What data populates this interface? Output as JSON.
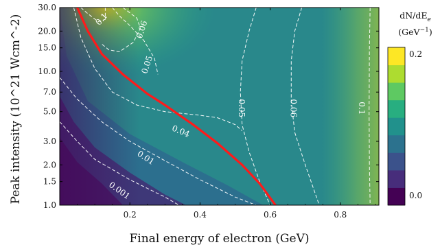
{
  "chart_data": {
    "type": "heatmap",
    "title": "",
    "xlabel": "Final energy of electron (GeV)",
    "ylabel": "Peak intensity (10^21 Wcm^-2)",
    "xlim": [
      0.0,
      0.91
    ],
    "ylim": [
      1.0,
      30.0
    ],
    "yscale": "log",
    "x_ticks": [
      0.2,
      0.4,
      0.6,
      0.8
    ],
    "x_tick_labels": [
      "0.2",
      "0.4",
      "0.6",
      "0.8"
    ],
    "y_ticks": [
      1.0,
      1.5,
      2.0,
      3.0,
      5.0,
      7.0,
      10.0,
      15.0,
      20.0,
      30.0
    ],
    "y_tick_labels": [
      "1.0",
      "1.5",
      "2.0",
      "3.0",
      "5.0",
      "7.0",
      "10.0",
      "15.0",
      "20.0",
      "30.0"
    ],
    "colorbar": {
      "title_line1": "dN/dE_e",
      "title_line2": "(GeV^-1)",
      "range": [
        0.0,
        0.2
      ],
      "tick_labels": [
        "0.2",
        "0.0"
      ],
      "levels": 10,
      "colors": [
        "#440154",
        "#472d7b",
        "#3b528b",
        "#2c728e",
        "#21918c",
        "#28ae80",
        "#5ec962",
        "#addc30",
        "#fde725"
      ]
    },
    "contours": [
      {
        "level": "0.001",
        "points": [
          [
            0.0,
            4.2
          ],
          [
            0.05,
            3.0
          ],
          [
            0.1,
            2.2
          ],
          [
            0.2,
            1.55
          ],
          [
            0.3,
            1.15
          ],
          [
            0.34,
            1.0
          ]
        ],
        "label_at": [
          0.17,
          1.28
        ],
        "label_angle": 35
      },
      {
        "level": "0.01",
        "points": [
          [
            0.0,
            9.0
          ],
          [
            0.05,
            6.2
          ],
          [
            0.12,
            4.2
          ],
          [
            0.2,
            3.0
          ],
          [
            0.3,
            2.15
          ],
          [
            0.4,
            1.55
          ],
          [
            0.5,
            1.15
          ],
          [
            0.56,
            1.0
          ]
        ],
        "label_at": [
          0.245,
          2.25
        ],
        "label_angle": 33
      },
      {
        "level": "0.04",
        "points": [
          [
            0.04,
            30.0
          ],
          [
            0.06,
            18.0
          ],
          [
            0.1,
            10.5
          ],
          [
            0.15,
            7.0
          ],
          [
            0.22,
            5.6
          ],
          [
            0.3,
            5.0
          ],
          [
            0.4,
            4.7
          ],
          [
            0.45,
            4.5
          ],
          [
            0.5,
            4.0
          ],
          [
            0.52,
            3.6
          ]
        ],
        "label_at": [
          0.345,
          3.55
        ],
        "label_angle": 23
      },
      {
        "level": "0.05",
        "points": [
          [
            0.15,
            30.0
          ],
          [
            0.17,
            26.0
          ],
          [
            0.2,
            22.0
          ],
          [
            0.24,
            17.0
          ],
          [
            0.27,
            12.5
          ],
          [
            0.28,
            9.5
          ]
        ],
        "label_at": [
          0.25,
          11.2
        ],
        "label_angle": -72
      },
      {
        "level": "0.05",
        "points": [
          [
            0.56,
            30.0
          ],
          [
            0.54,
            20.0
          ],
          [
            0.52,
            12.0
          ],
          [
            0.515,
            7.0
          ],
          [
            0.52,
            4.0
          ],
          [
            0.54,
            2.5
          ],
          [
            0.57,
            1.5
          ],
          [
            0.6,
            1.0
          ]
        ],
        "label_at": [
          0.518,
          5.3
        ],
        "label_angle": 90
      },
      {
        "level": "0.06",
        "points": [
          [
            0.18,
            30.0
          ],
          [
            0.22,
            25.0
          ],
          [
            0.23,
            21.0
          ],
          [
            0.21,
            16.5
          ],
          [
            0.17,
            14.0
          ],
          [
            0.14,
            14.5
          ],
          [
            0.12,
            16.0
          ]
        ],
        "label_at": [
          0.235,
          20.5
        ],
        "label_angle": -72
      },
      {
        "level": "0.06",
        "points": [
          [
            0.69,
            30.0
          ],
          [
            0.67,
            20.0
          ],
          [
            0.66,
            12.0
          ],
          [
            0.66,
            6.0
          ],
          [
            0.67,
            3.5
          ],
          [
            0.7,
            2.0
          ],
          [
            0.74,
            1.0
          ]
        ],
        "label_at": [
          0.665,
          5.3
        ],
        "label_angle": 90
      },
      {
        "level": "0.1",
        "points": [
          [
            0.06,
            30.0
          ],
          [
            0.08,
            27.0
          ],
          [
            0.11,
            23.5
          ],
          [
            0.13,
            24.5
          ],
          [
            0.13,
            30.0
          ]
        ],
        "label_at": [
          0.12,
          24.5
        ],
        "label_angle": -48
      },
      {
        "level": "0.1",
        "points": [
          [
            0.885,
            30.0
          ],
          [
            0.883,
            15.0
          ],
          [
            0.882,
            5.0
          ],
          [
            0.883,
            2.0
          ],
          [
            0.885,
            1.0
          ]
        ],
        "label_at": [
          0.86,
          5.3
        ],
        "label_angle": 90
      }
    ],
    "threshold_curve": {
      "color": "#ff0000",
      "points": [
        [
          0.05,
          30.0
        ],
        [
          0.08,
          20.0
        ],
        [
          0.12,
          13.5
        ],
        [
          0.18,
          9.5
        ],
        [
          0.25,
          6.8
        ],
        [
          0.3,
          5.6
        ],
        [
          0.38,
          4.0
        ],
        [
          0.45,
          2.9
        ],
        [
          0.52,
          2.0
        ],
        [
          0.57,
          1.45
        ],
        [
          0.615,
          1.0
        ]
      ]
    }
  }
}
